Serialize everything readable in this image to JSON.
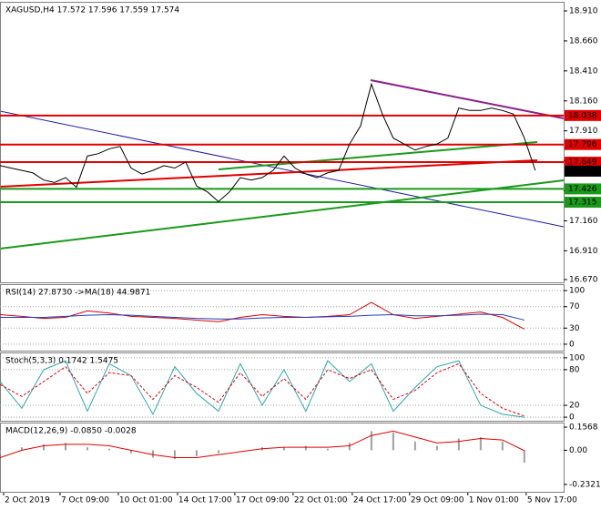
{
  "chart_data": [
    {
      "type": "line",
      "title": "XAGUSD,H4  17.572 17.596 17.559 17.574",
      "x": [
        0,
        1,
        2,
        3,
        4,
        5,
        6,
        7,
        8,
        9,
        10,
        11,
        12,
        13,
        14,
        15,
        16,
        17,
        18,
        19,
        20,
        21,
        22,
        23,
        24,
        25,
        26,
        27,
        28,
        29,
        30,
        31,
        32,
        33,
        34,
        35,
        36,
        37,
        38,
        39,
        40,
        41,
        42,
        43,
        44,
        45,
        46,
        47,
        48,
        49
      ],
      "series": [
        {
          "color": "#000000",
          "values": [
            17.62,
            17.6,
            17.58,
            17.56,
            17.5,
            17.48,
            17.52,
            17.44,
            17.7,
            17.72,
            17.76,
            17.78,
            17.6,
            17.55,
            17.58,
            17.62,
            17.6,
            17.65,
            17.45,
            17.4,
            17.32,
            17.4,
            17.52,
            17.5,
            17.52,
            17.58,
            17.7,
            17.6,
            17.55,
            17.52,
            17.56,
            17.58,
            17.8,
            17.95,
            18.3,
            18.05,
            17.85,
            17.8,
            17.75,
            17.78,
            17.8,
            17.85,
            18.1,
            18.08,
            18.08,
            18.1,
            18.08,
            18.05,
            17.85,
            17.58
          ]
        }
      ],
      "xlim": [
        0,
        51.6
      ],
      "xticks": [
        {
          "value": 0.33,
          "label": "2 Oct 2019"
        },
        {
          "value": 5.5,
          "label": "7 Oct 09:00"
        },
        {
          "value": 10.83,
          "label": "10 Oct 01:00"
        },
        {
          "value": 16.25,
          "label": "14 Oct 17:00"
        },
        {
          "value": 21.5,
          "label": "17 Oct 09:00"
        },
        {
          "value": 26.83,
          "label": "22 Oct 01:00"
        },
        {
          "value": 32.25,
          "label": "24 Oct 17:00"
        },
        {
          "value": 37.5,
          "label": "29 Oct 09:00"
        },
        {
          "value": 42.83,
          "label": "1 Nov 01:00"
        },
        {
          "value": 48.17,
          "label": "5 Nov 17:00"
        }
      ],
      "ylim": [
        16.647,
        18.986
      ],
      "yticks": [
        {
          "value": 18.91,
          "label": "18.910"
        },
        {
          "value": 18.66,
          "label": "18.660"
        },
        {
          "value": 18.41,
          "label": "18.410"
        },
        {
          "value": 18.16,
          "label": "18.160"
        },
        {
          "value": 17.91,
          "label": "17.910"
        },
        {
          "value": 17.66,
          "label": "17.660"
        },
        {
          "value": 17.41,
          "label": "17.410"
        },
        {
          "value": 17.16,
          "label": "17.160"
        },
        {
          "value": 16.91,
          "label": "16.910"
        },
        {
          "value": 16.67,
          "label": "16.670"
        }
      ],
      "grid": false,
      "levels": [
        {
          "value": 18.038,
          "color": "#e00000"
        },
        {
          "value": 17.796,
          "color": "#e00000"
        },
        {
          "value": 17.649,
          "color": "#e00000"
        },
        {
          "value": 17.574,
          "color": "#000000"
        },
        {
          "value": 17.426,
          "color": "#1a9a1a"
        },
        {
          "value": 17.315,
          "color": "#1a9a1a"
        }
      ]
    },
    {
      "type": "line",
      "title": "RSI(14) 27.8730  ->MA(18) 44.9871",
      "x": [
        0,
        1,
        2,
        3,
        4,
        5,
        6,
        7,
        8,
        9,
        10,
        11,
        12,
        13,
        14,
        15,
        16,
        17,
        18,
        19,
        20,
        21,
        22,
        23,
        24
      ],
      "series": [
        {
          "color": "#e00000",
          "values": [
            55,
            52,
            48,
            50,
            62,
            58,
            52,
            50,
            48,
            45,
            42,
            50,
            55,
            52,
            50,
            52,
            55,
            78,
            55,
            48,
            52,
            56,
            60,
            50,
            28
          ]
        },
        {
          "color": "#1f3fbf",
          "values": [
            50,
            50,
            50,
            52,
            54,
            55,
            54,
            52,
            50,
            48,
            47,
            47,
            49,
            50,
            50,
            51,
            52,
            54,
            55,
            53,
            53,
            54,
            56,
            55,
            45
          ]
        }
      ],
      "xlim": [
        0,
        25.8
      ],
      "ylim": [
        -12,
        112
      ],
      "yticks": [
        100,
        70,
        30,
        0
      ],
      "grid": true
    },
    {
      "type": "line",
      "title": "Stoch(5,3,3) 0.1742 1.5475",
      "x": [
        0,
        1,
        2,
        3,
        4,
        5,
        6,
        7,
        8,
        9,
        10,
        11,
        12,
        13,
        14,
        15,
        16,
        17,
        18,
        19,
        20,
        21,
        22,
        23,
        24
      ],
      "series": [
        {
          "color": "#2aa6b0",
          "values": [
            60,
            15,
            80,
            95,
            10,
            90,
            70,
            5,
            85,
            40,
            10,
            90,
            20,
            80,
            10,
            95,
            60,
            90,
            10,
            50,
            85,
            95,
            20,
            5,
            0
          ]
        },
        {
          "color": "#e00000",
          "dash": true,
          "values": [
            55,
            35,
            60,
            85,
            40,
            75,
            70,
            30,
            70,
            50,
            25,
            75,
            35,
            65,
            30,
            80,
            65,
            80,
            30,
            45,
            75,
            90,
            40,
            15,
            2
          ]
        }
      ],
      "xlim": [
        0,
        25.8
      ],
      "ylim": [
        -6,
        109
      ],
      "yticks": [
        100,
        80,
        20,
        0
      ],
      "grid": true
    },
    {
      "type": "bar",
      "title": "MACD(12,26,9) -0.0850 -0.0028",
      "x": [
        0,
        1,
        2,
        3,
        4,
        5,
        6,
        7,
        8,
        9,
        10,
        11,
        12,
        13,
        14,
        15,
        16,
        17,
        18,
        19,
        20,
        21,
        22,
        23,
        24
      ],
      "values": [
        -0.02,
        0.02,
        0.04,
        0.05,
        0.02,
        0.01,
        -0.02,
        -0.05,
        -0.06,
        -0.04,
        -0.02,
        0.0,
        0.02,
        0.02,
        0.03,
        0.01,
        0.05,
        0.13,
        0.12,
        0.06,
        0.03,
        0.08,
        0.09,
        0.06,
        -0.085
      ],
      "color": "#a0a0a0",
      "signal_line": {
        "color": "#e00000",
        "values": [
          -0.05,
          0.0,
          0.03,
          0.04,
          0.04,
          0.03,
          0.0,
          -0.03,
          -0.05,
          -0.05,
          -0.03,
          -0.01,
          0.01,
          0.02,
          0.02,
          0.02,
          0.03,
          0.1,
          0.13,
          0.09,
          0.05,
          0.06,
          0.08,
          0.07,
          -0.003
        ]
      },
      "xlim": [
        0,
        25.8
      ],
      "ylim": [
        -0.282,
        0.188
      ],
      "yticks": [
        0.1568,
        {
          "value": 0,
          "label": "0.00"
        },
        -0.2321
      ],
      "grid": false
    }
  ]
}
